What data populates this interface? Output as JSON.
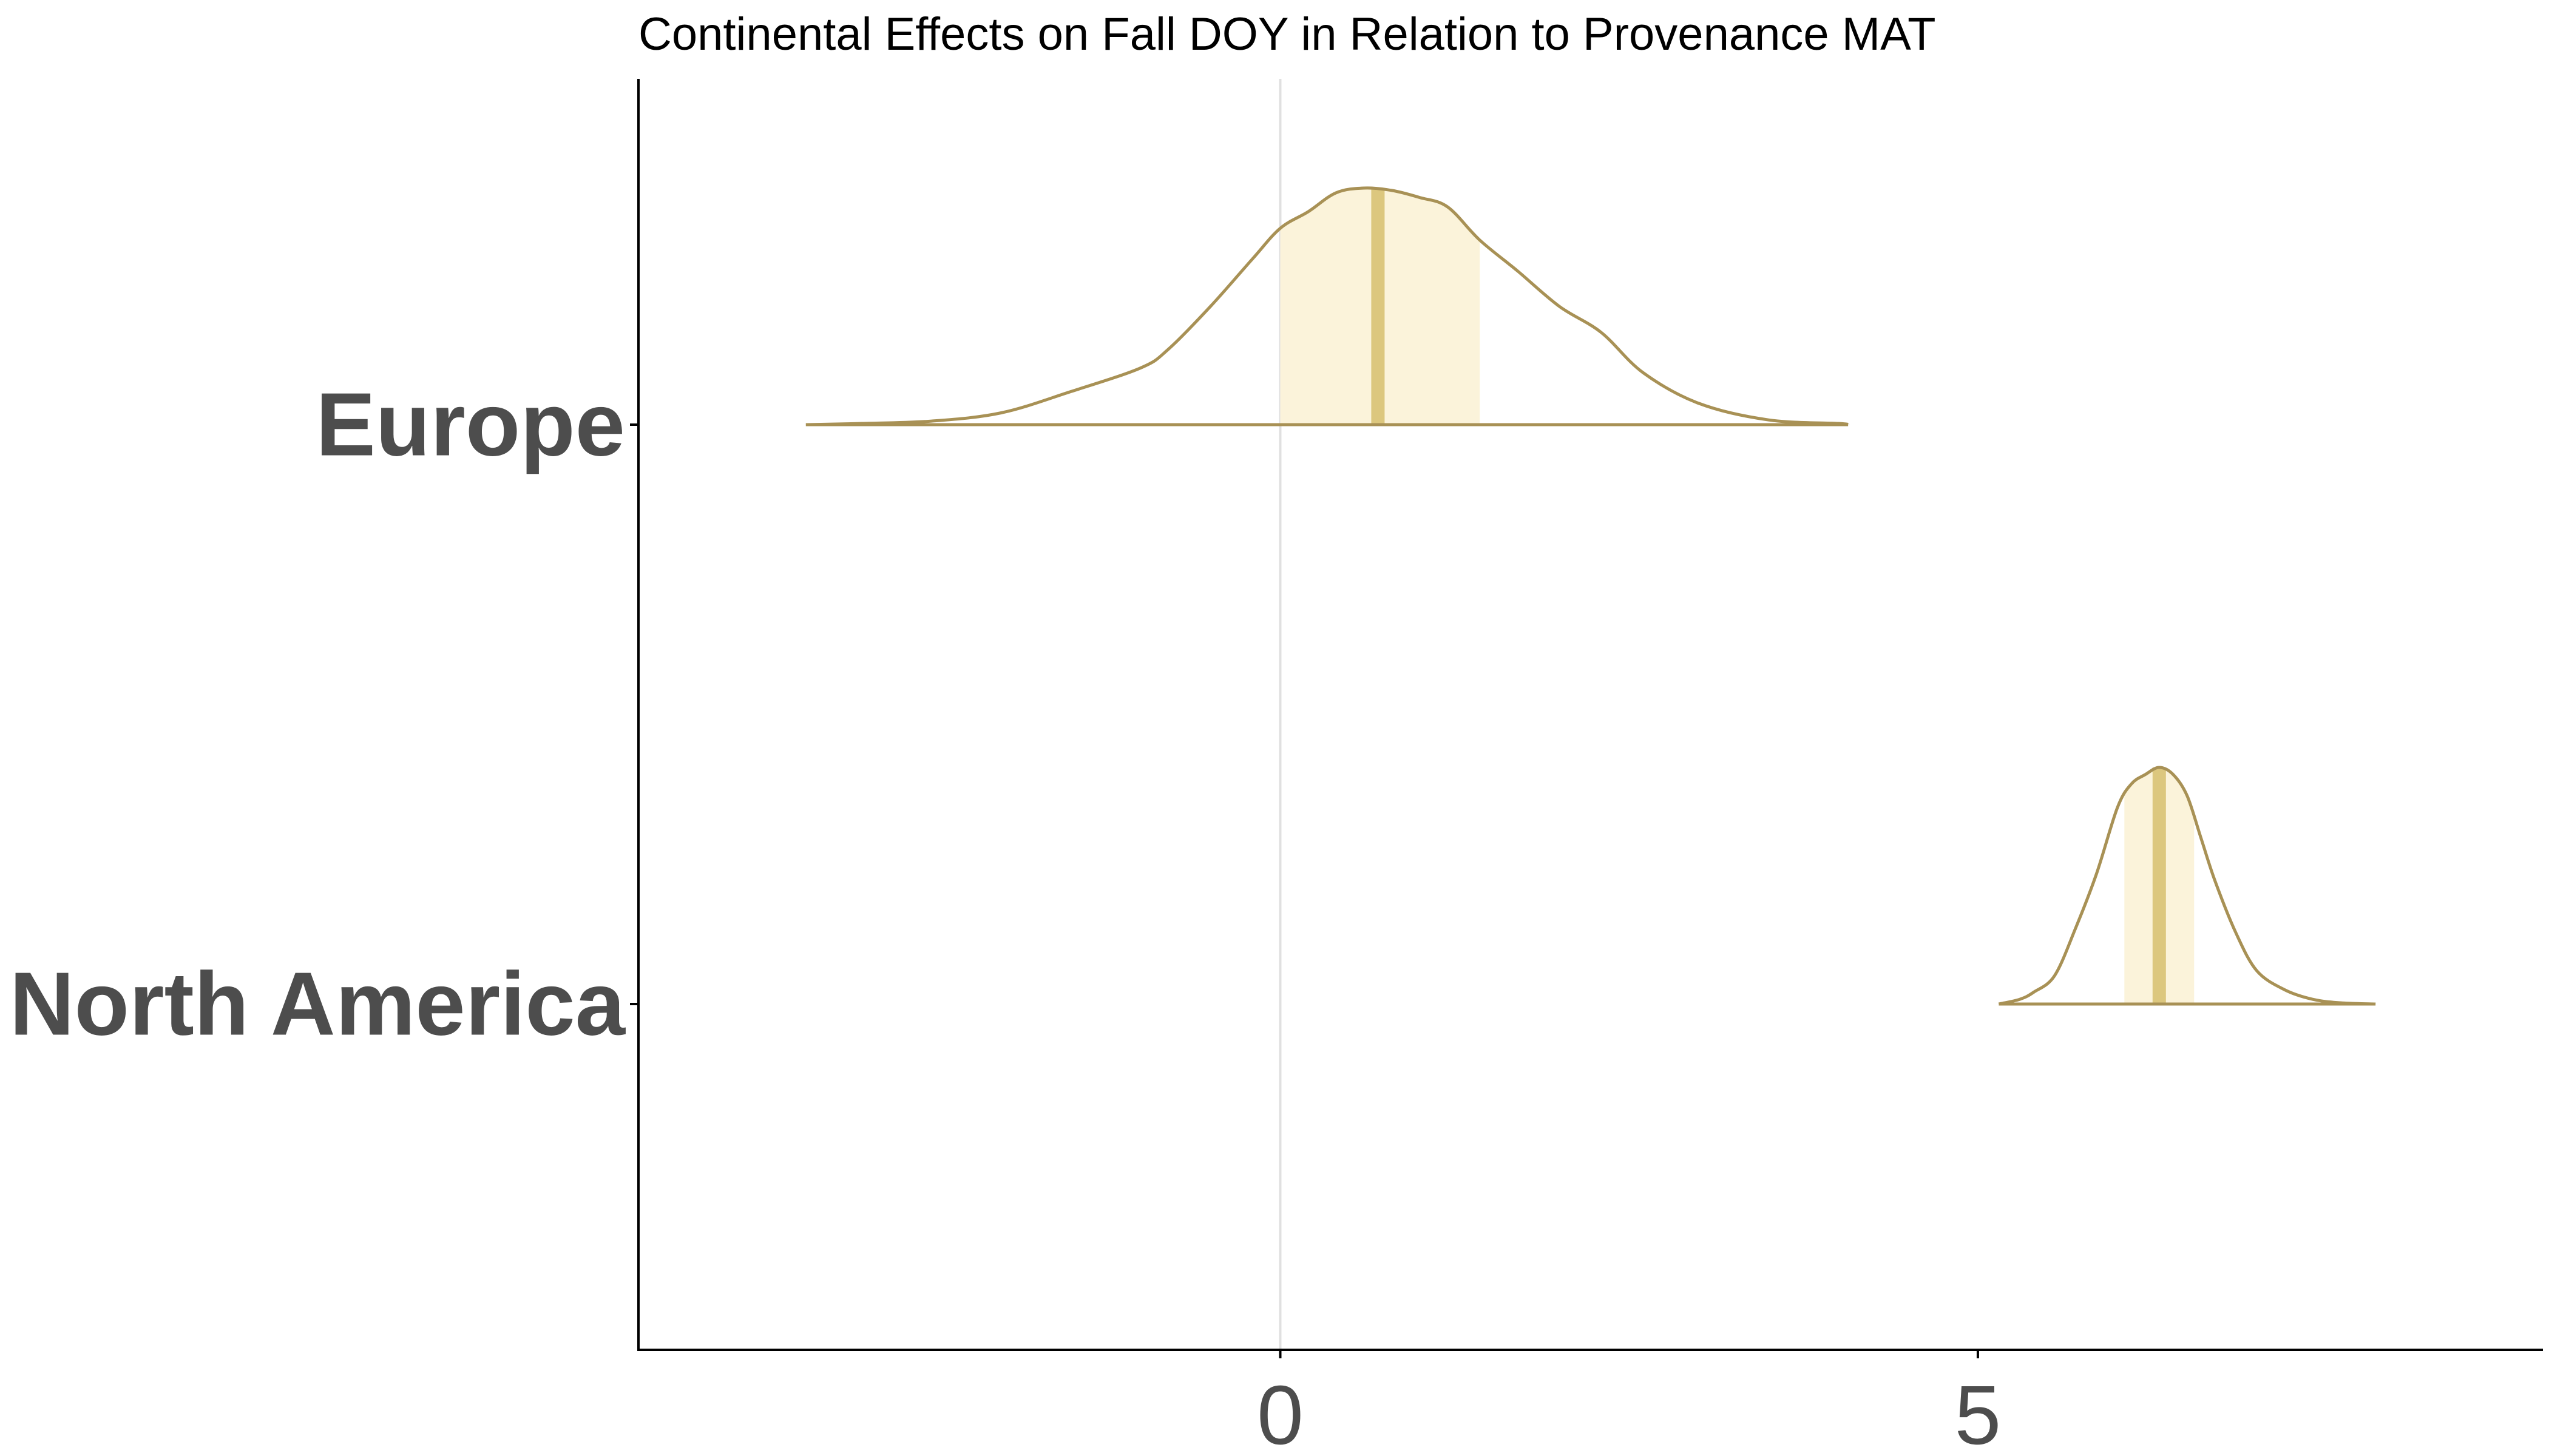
{
  "chart_data": {
    "type": "density",
    "title": "Continental Effects on Fall DOY in Relation to Provenance MAT",
    "xlabel": "",
    "ylabel": "",
    "categories": [
      "Europe",
      "North America"
    ],
    "x_ticks": [
      0,
      5
    ],
    "xlim": [
      -4.6,
      9.05
    ],
    "reference_line_x": 0,
    "grid": false,
    "legend": "none",
    "colors": {
      "outline": "#a89155",
      "interval_fill": "#fbf3da",
      "median_line": "#dcc77e",
      "reference_line": "#e0e0e0",
      "axis": "#000000",
      "tick_label": "#4d4d4d"
    },
    "series": [
      {
        "category": "Europe",
        "median": 0.7,
        "interval": [
          0.0,
          1.43
        ],
        "density": [
          [
            -3.4,
            0.0
          ],
          [
            -3.0,
            0.005
          ],
          [
            -2.5,
            0.015
          ],
          [
            -2.0,
            0.05
          ],
          [
            -1.5,
            0.14
          ],
          [
            -1.0,
            0.24
          ],
          [
            -0.8,
            0.32
          ],
          [
            -0.5,
            0.5
          ],
          [
            -0.2,
            0.7
          ],
          [
            0.0,
            0.83
          ],
          [
            0.2,
            0.9
          ],
          [
            0.4,
            0.98
          ],
          [
            0.6,
            1.0
          ],
          [
            0.8,
            0.99
          ],
          [
            1.0,
            0.96
          ],
          [
            1.2,
            0.92
          ],
          [
            1.43,
            0.78
          ],
          [
            1.7,
            0.65
          ],
          [
            2.0,
            0.5
          ],
          [
            2.3,
            0.39
          ],
          [
            2.6,
            0.22
          ],
          [
            3.0,
            0.09
          ],
          [
            3.5,
            0.02
          ],
          [
            4.0,
            0.005
          ],
          [
            4.07,
            0.0
          ]
        ]
      },
      {
        "category": "North America",
        "median": 6.3,
        "interval": [
          6.05,
          6.55
        ],
        "density": [
          [
            5.15,
            0.0
          ],
          [
            5.3,
            0.02
          ],
          [
            5.4,
            0.05
          ],
          [
            5.55,
            0.12
          ],
          [
            5.7,
            0.32
          ],
          [
            5.85,
            0.55
          ],
          [
            6.0,
            0.83
          ],
          [
            6.1,
            0.93
          ],
          [
            6.2,
            0.97
          ],
          [
            6.3,
            1.0
          ],
          [
            6.4,
            0.97
          ],
          [
            6.5,
            0.88
          ],
          [
            6.6,
            0.7
          ],
          [
            6.7,
            0.52
          ],
          [
            6.85,
            0.3
          ],
          [
            7.0,
            0.14
          ],
          [
            7.2,
            0.06
          ],
          [
            7.4,
            0.02
          ],
          [
            7.6,
            0.005
          ],
          [
            7.85,
            0.0
          ]
        ]
      }
    ]
  }
}
